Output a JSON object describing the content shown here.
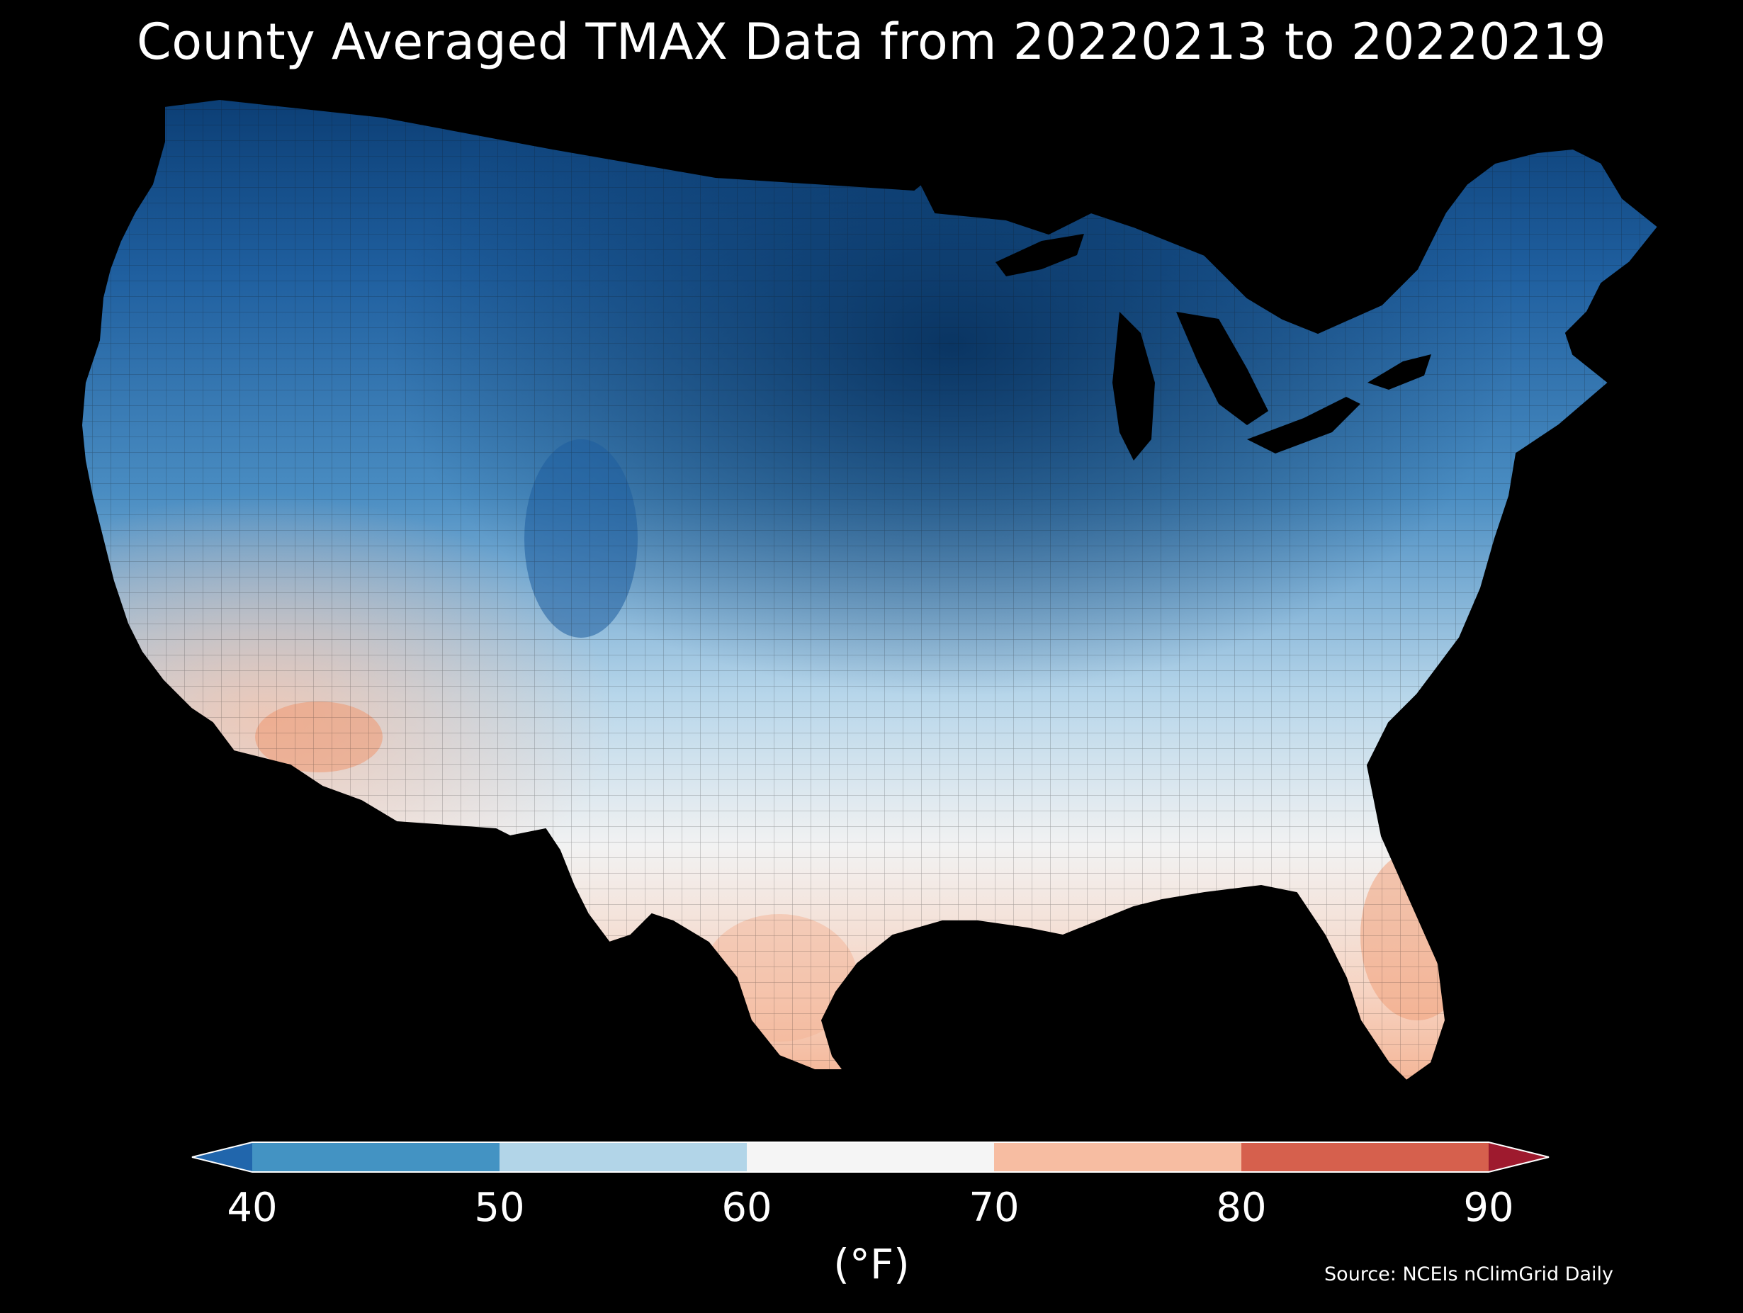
{
  "title": "County Averaged TMAX Data from 20220213 to 20220219",
  "source": "Source: NCEIs nClimGrid Daily",
  "colorbar": {
    "unit_label": "(°F)",
    "ticks": [
      "40",
      "50",
      "60",
      "70",
      "80",
      "90"
    ],
    "bins": [
      {
        "range": "<40",
        "color": "#2166ac"
      },
      {
        "range": "40-50",
        "color": "#4393c3"
      },
      {
        "range": "50-60",
        "color": "#b2d5e8"
      },
      {
        "range": "60-70",
        "color": "#f5f5f5"
      },
      {
        "range": "70-80",
        "color": "#f7bda2"
      },
      {
        "range": "80-90",
        "color": "#d6604d"
      },
      {
        "range": ">90",
        "color": "#9e1a2e"
      }
    ]
  },
  "chart_data": {
    "type": "heatmap",
    "title": "County Averaged TMAX Data from 20220213 to 20220219",
    "variable": "TMAX",
    "units": "°F",
    "scale_range": [
      40,
      90
    ]
  }
}
